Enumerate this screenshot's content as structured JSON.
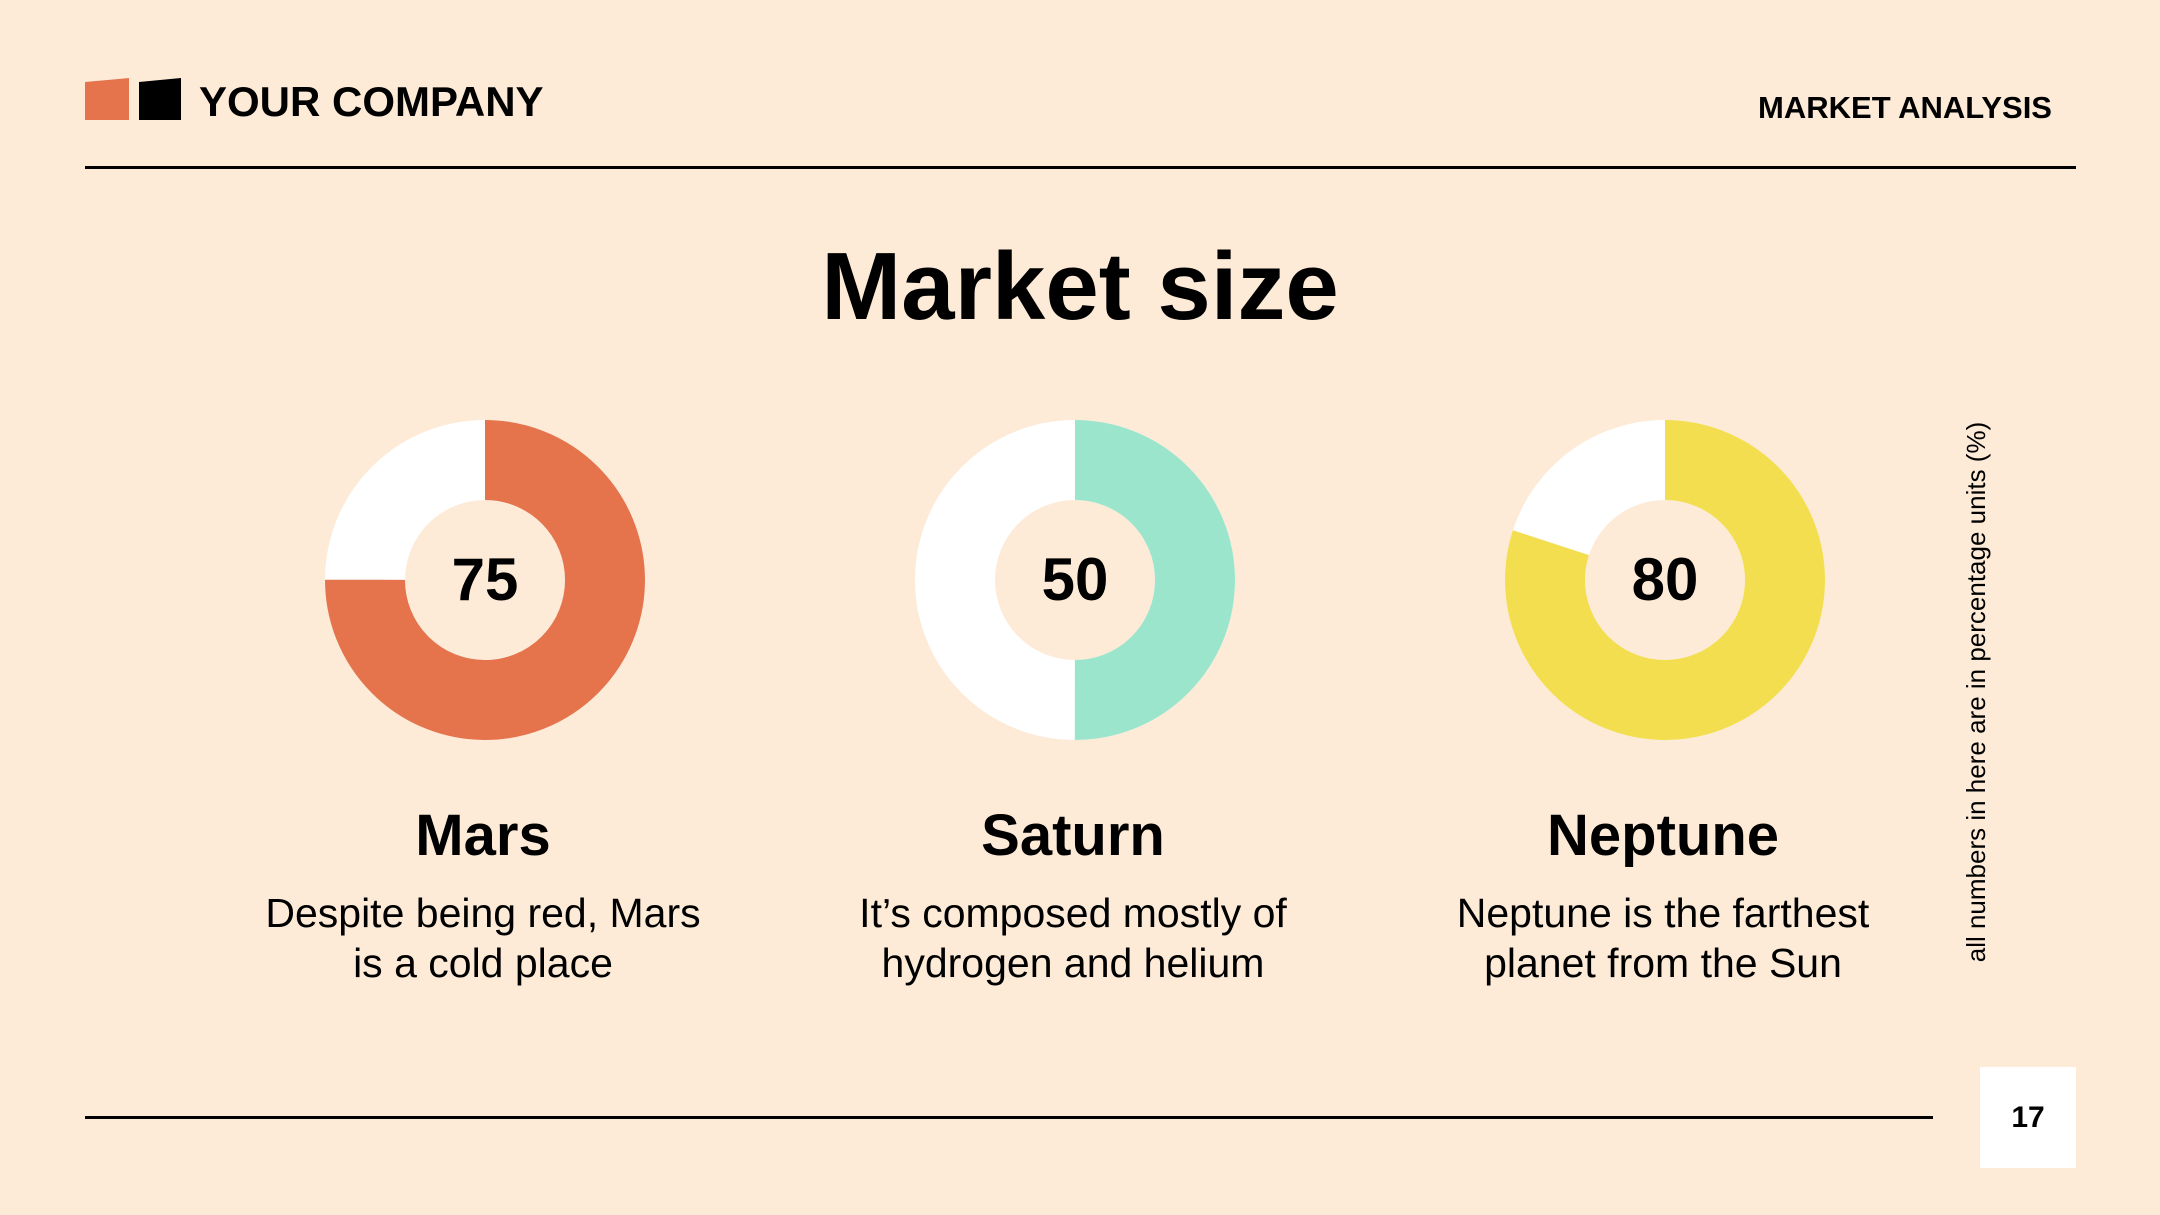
{
  "header": {
    "company": "YOUR COMPANY",
    "section": "MARKET ANALYSIS"
  },
  "title": "Market size",
  "note": "all numbers in here are in percentage units (%)",
  "page_number": "17",
  "colors": {
    "background": "#FDEBD8",
    "remainder": "#FFFFFF",
    "logo_orange": "#E5744D",
    "logo_black": "#000000"
  },
  "chart_data": [
    {
      "type": "pie",
      "name": "Mars",
      "description": "Despite being red, Mars\nis a cold place",
      "value": 75,
      "max": 100,
      "color": "#E5744D"
    },
    {
      "type": "pie",
      "name": "Saturn",
      "description": "It’s composed mostly of\nhydrogen and helium",
      "value": 50,
      "max": 100,
      "color": "#9BE5CC"
    },
    {
      "type": "pie",
      "name": "Neptune",
      "description": "Neptune is the farthest\nplanet from the Sun",
      "value": 80,
      "max": 100,
      "color": "#F2DE4F"
    }
  ]
}
